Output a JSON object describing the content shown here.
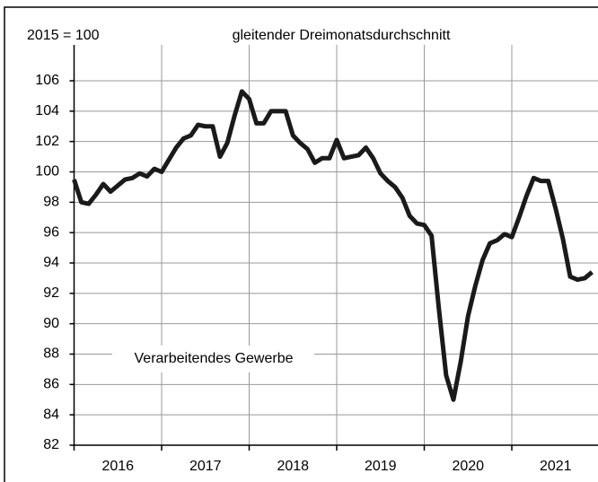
{
  "chart_data": {
    "type": "line",
    "title": "gleitender Dreimonatsdurchschnitt",
    "subtitle": "2015 = 100",
    "annotation": "Verarbeitendes Gewerbe",
    "categories": [
      null,
      null,
      null,
      null,
      null,
      null,
      "2016",
      null,
      null,
      null,
      null,
      null,
      null,
      null,
      null,
      null,
      null,
      null,
      "2017",
      null,
      null,
      null,
      null,
      null,
      null,
      null,
      null,
      null,
      null,
      null,
      "2018",
      null,
      null,
      null,
      null,
      null,
      null,
      null,
      null,
      null,
      null,
      null,
      "2019",
      null,
      null,
      null,
      null,
      null,
      null,
      null,
      null,
      null,
      null,
      null,
      "2020",
      null,
      null,
      null,
      null,
      null,
      null,
      null,
      null,
      null,
      null,
      null,
      "2021",
      null,
      null,
      null,
      null,
      null
    ],
    "values": [
      99.5,
      98.0,
      97.9,
      98.5,
      99.2,
      98.7,
      99.1,
      99.5,
      99.6,
      99.9,
      99.7,
      100.2,
      100.0,
      100.8,
      101.6,
      102.2,
      102.4,
      103.1,
      103.0,
      103.0,
      101.0,
      101.9,
      103.7,
      105.3,
      104.8,
      103.2,
      103.2,
      104.0,
      104.0,
      104.0,
      102.4,
      101.9,
      101.5,
      100.6,
      100.9,
      100.9,
      102.1,
      100.9,
      101.0,
      101.1,
      101.6,
      100.9,
      99.9,
      99.4,
      99.0,
      98.3,
      97.1,
      96.6,
      96.5,
      95.8,
      91.0,
      86.6,
      85.0,
      87.5,
      90.5,
      92.5,
      94.2,
      95.3,
      95.5,
      95.9,
      95.7,
      97.0,
      98.4,
      99.6,
      99.4,
      99.4,
      97.6,
      95.6,
      93.1,
      92.9,
      93.0,
      93.4
    ],
    "color": "#1a1a1a",
    "ylim": [
      82,
      106
    ],
    "yticks": [
      82,
      84,
      86,
      88,
      90,
      92,
      94,
      96,
      98,
      100,
      102,
      104,
      106
    ],
    "grid": true
  }
}
